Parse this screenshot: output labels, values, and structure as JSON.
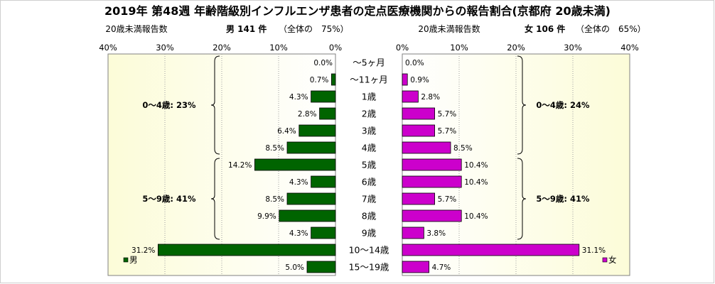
{
  "chart_data": {
    "type": "bar",
    "title": "2019年 第48週 年齢階級別インフルエンザ患者の定点医療機関からの報告割合(京都府 20歳未満)",
    "categories": [
      "〜5ヶ月",
      "〜11ヶ月",
      "1歳",
      "2歳",
      "3歳",
      "4歳",
      "5歳",
      "6歳",
      "7歳",
      "8歳",
      "9歳",
      "10〜14歳",
      "15〜19歳"
    ],
    "axis_ticks": [
      "40%",
      "30%",
      "20%",
      "10%",
      "0%"
    ],
    "axis_ticks_right": [
      "0%",
      "10%",
      "20%",
      "30%",
      "40%"
    ],
    "xlim": [
      0,
      40
    ],
    "left_panel": {
      "header_label": "20歳未満報告数",
      "header_count": "男 141 件",
      "header_share": "（全体の　75%）"
    },
    "right_panel": {
      "header_label": "20歳未満報告数",
      "header_count": "女 106 件",
      "header_share": "（全体の　65%）"
    },
    "series": [
      {
        "name": "男",
        "color": "#006400",
        "values": [
          0.0,
          0.7,
          4.3,
          2.8,
          6.4,
          8.5,
          14.2,
          4.3,
          8.5,
          9.9,
          4.3,
          31.2,
          5.0
        ],
        "labels": [
          "0.0%",
          "0.7%",
          "4.3%",
          "2.8%",
          "6.4%",
          "8.5%",
          "14.2%",
          "4.3%",
          "8.5%",
          "9.9%",
          "4.3%",
          "31.2%",
          "5.0%"
        ],
        "groups": [
          {
            "label": "0〜4歳: 23%",
            "from": 0,
            "to": 5
          },
          {
            "label": "5〜9歳: 41%",
            "from": 6,
            "to": 10
          }
        ]
      },
      {
        "name": "女",
        "color": "#cc00cc",
        "values": [
          0.0,
          0.9,
          2.8,
          5.7,
          5.7,
          8.5,
          10.4,
          10.4,
          5.7,
          10.4,
          3.8,
          31.1,
          4.7
        ],
        "labels": [
          "0.0%",
          "0.9%",
          "2.8%",
          "5.7%",
          "5.7%",
          "8.5%",
          "10.4%",
          "10.4%",
          "5.7%",
          "10.4%",
          "3.8%",
          "31.1%",
          "4.7%"
        ],
        "groups": [
          {
            "label": "0〜4歳: 24%",
            "from": 0,
            "to": 5
          },
          {
            "label": "5〜9歳: 41%",
            "from": 6,
            "to": 10
          }
        ]
      }
    ],
    "grid": true,
    "legend_position": "bottom"
  }
}
